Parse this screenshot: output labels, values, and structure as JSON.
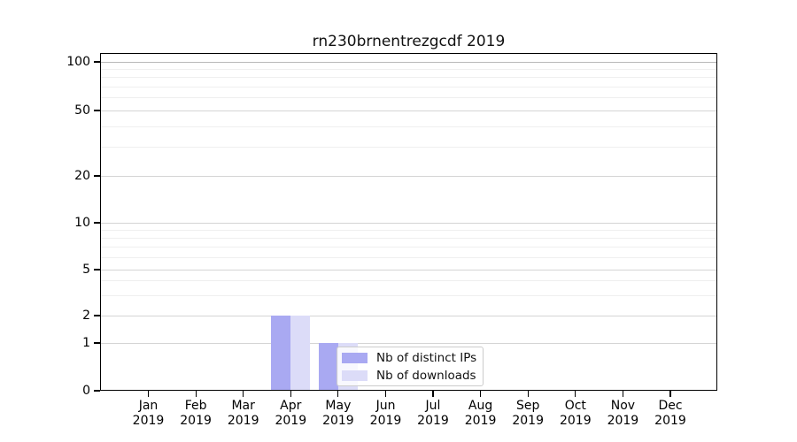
{
  "title": "rn230brnentrezgcdf 2019",
  "chart_data": {
    "type": "bar",
    "title": "rn230brnentrezgcdf 2019",
    "categories": [
      "Jan 2019",
      "Feb 2019",
      "Mar 2019",
      "Apr 2019",
      "May 2019",
      "Jun 2019",
      "Jul 2019",
      "Aug 2019",
      "Sep 2019",
      "Oct 2019",
      "Nov 2019",
      "Dec 2019"
    ],
    "series": [
      {
        "name": "Nb of distinct IPs",
        "color": "#a9a9f2",
        "values": [
          0,
          0,
          0,
          2,
          1,
          0,
          0,
          0,
          0,
          0,
          0,
          0
        ]
      },
      {
        "name": "Nb of downloads",
        "color": "#dcdcf8",
        "values": [
          0,
          0,
          0,
          2,
          1,
          0,
          0,
          0,
          0,
          0,
          0,
          0
        ]
      }
    ],
    "xlabel": "",
    "ylabel": "",
    "yscale": "symlog",
    "ylim": [
      0,
      115
    ],
    "yticks": [
      0,
      1,
      2,
      5,
      10,
      20,
      50,
      100
    ],
    "minor_yticks": [
      3,
      4,
      6,
      7,
      8,
      9,
      30,
      40,
      60,
      70,
      80,
      90
    ],
    "grid": "horizontal, major and minor, no vertical",
    "legend_position": "inside lower center-right"
  },
  "legend": {
    "items": [
      {
        "label": "Nb of distinct IPs",
        "color": "#a9a9f2"
      },
      {
        "label": "Nb of downloads",
        "color": "#dcdcf8"
      }
    ]
  },
  "colors": {
    "background": "#ffffff",
    "bar_distinct_ips": "#a9a9f2",
    "bar_downloads": "#dcdcf8",
    "grid_major": "#d4d4d4",
    "grid_top_line": "#b9b9b9",
    "grid_minor": "#efefef",
    "axis_frame": "#000000",
    "legend_border": "#cccccc"
  }
}
